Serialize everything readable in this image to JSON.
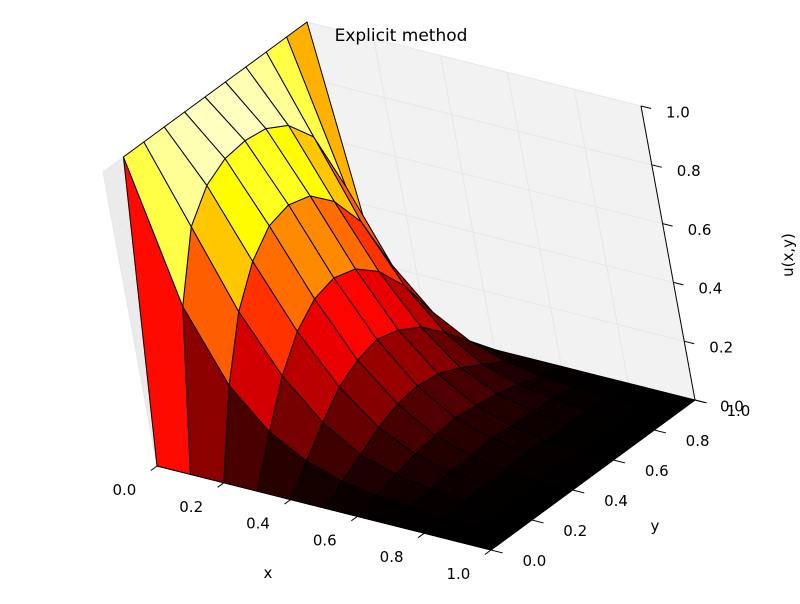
{
  "chart_data": {
    "type": "surface",
    "title": "Explicit method",
    "xlabel": "x",
    "ylabel": "y",
    "zlabel": "u(x,y)",
    "xlim": [
      0.0,
      1.0
    ],
    "ylim": [
      0.0,
      1.0
    ],
    "zlim": [
      0.0,
      1.0
    ],
    "x_ticks": [
      "0.0",
      "0.2",
      "0.4",
      "0.6",
      "0.8",
      "1.0"
    ],
    "y_ticks": [
      "0.0",
      "0.2",
      "0.4",
      "0.6",
      "0.8",
      "1.0"
    ],
    "z_ticks": [
      "0.0",
      "0.2",
      "0.4",
      "0.6",
      "0.8",
      "1.0"
    ],
    "colormap": "hot",
    "grid": true,
    "x": [
      0.0,
      0.1,
      0.2,
      0.3,
      0.4,
      0.5,
      0.6,
      0.7,
      0.8,
      0.9,
      1.0
    ],
    "y": [
      0.0,
      0.1,
      0.2,
      0.3,
      0.4,
      0.5,
      0.6,
      0.7,
      0.8,
      0.9,
      1.0
    ],
    "z_rows_by_x": [
      [
        0.0,
        1.0,
        1.0,
        1.0,
        1.0,
        1.0,
        1.0,
        1.0,
        1.0,
        1.0,
        1.0
      ],
      [
        0.0,
        0.52,
        0.74,
        0.83,
        0.87,
        0.88,
        0.87,
        0.83,
        0.74,
        0.52,
        0.0
      ],
      [
        0.0,
        0.28,
        0.48,
        0.6,
        0.67,
        0.69,
        0.67,
        0.6,
        0.48,
        0.28,
        0.0
      ],
      [
        0.0,
        0.15,
        0.29,
        0.39,
        0.45,
        0.47,
        0.45,
        0.39,
        0.29,
        0.15,
        0.0
      ],
      [
        0.0,
        0.08,
        0.16,
        0.23,
        0.27,
        0.29,
        0.27,
        0.23,
        0.16,
        0.08,
        0.0
      ],
      [
        0.0,
        0.04,
        0.08,
        0.12,
        0.15,
        0.16,
        0.15,
        0.12,
        0.08,
        0.04,
        0.0
      ],
      [
        0.0,
        0.02,
        0.04,
        0.06,
        0.07,
        0.08,
        0.07,
        0.06,
        0.04,
        0.02,
        0.0
      ],
      [
        0.0,
        0.01,
        0.02,
        0.03,
        0.03,
        0.04,
        0.03,
        0.03,
        0.02,
        0.01,
        0.0
      ],
      [
        0.0,
        0.0,
        0.01,
        0.01,
        0.01,
        0.02,
        0.01,
        0.01,
        0.01,
        0.0,
        0.0
      ],
      [
        0.0,
        0.0,
        0.0,
        0.0,
        0.0,
        0.01,
        0.0,
        0.0,
        0.0,
        0.0,
        0.0
      ],
      [
        0.0,
        0.0,
        0.0,
        0.0,
        0.0,
        0.0,
        0.0,
        0.0,
        0.0,
        0.0,
        0.0
      ]
    ],
    "colors": {
      "pane": "#f2f2f2",
      "pane_side": "#ebebeb",
      "grid": "#e6e6e6",
      "edge": "#000000",
      "text": "#000000"
    }
  }
}
